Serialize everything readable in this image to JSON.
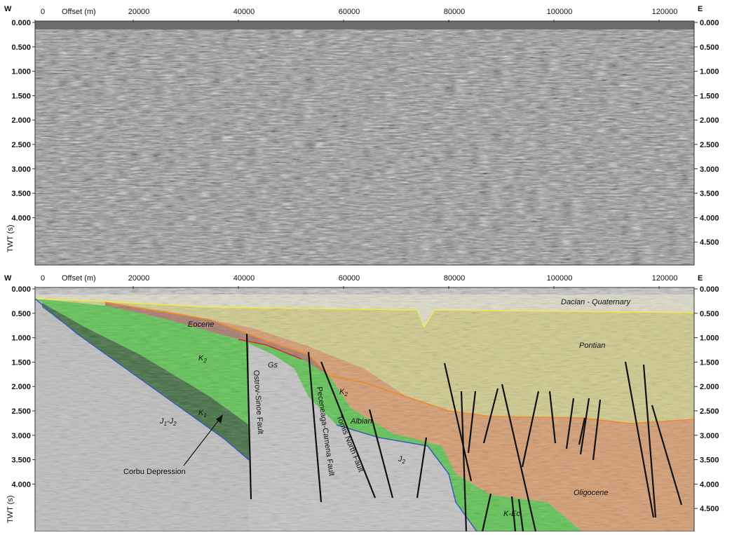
{
  "top_panel": {
    "west_label": "W",
    "east_label": "E",
    "offset_label": "Offset (m)",
    "y_axis_label": "TWT (s)",
    "x_ticks": [
      "0",
      "20000",
      "40000",
      "60000",
      "80000",
      "100000",
      "120000"
    ],
    "y_ticks_left": [
      "0.000",
      "0.500",
      "1.000",
      "1.500",
      "2.000",
      "2.500",
      "3.000",
      "3.500",
      "4.000"
    ],
    "y_ticks_right": [
      "0.000",
      "0.500",
      "1.000",
      "1.500",
      "2.000",
      "2.500",
      "3.000",
      "3.500",
      "4.000",
      "4.500"
    ]
  },
  "bottom_panel": {
    "west_label": "W",
    "east_label": "E",
    "offset_label": "Offset (m)",
    "y_axis_label": "TWT (s)",
    "x_ticks": [
      "0",
      "20000",
      "40000",
      "60000",
      "80000",
      "100000",
      "120000"
    ],
    "y_ticks_left": [
      "0.000",
      "0.500",
      "1.000",
      "1.500",
      "2.000",
      "2.500",
      "3.000",
      "3.500",
      "4.000"
    ],
    "y_ticks_right": [
      "0.000",
      "0.500",
      "1.000",
      "1.500",
      "2.000",
      "2.500",
      "3.000",
      "3.500",
      "4.000",
      "4.500"
    ],
    "units": {
      "dacian": "Dacian - Quaternary",
      "pontian": "Pontian",
      "eocene": "Eocene",
      "k2_main": "K",
      "k2_main_sub": "2",
      "k1": "K",
      "k1_sub": "1",
      "j1j2_a": "J",
      "j1j2_a_sub": "1",
      "j1j2_b": "-J",
      "j1j2_b_sub": "2",
      "gs": "Gs",
      "k2_b": "K",
      "k2_b_sub": "2",
      "albian": "Albian",
      "j2": "J",
      "j2_sub": "2",
      "oligocene": "Oligocene",
      "k_ec": "K-Ec"
    },
    "faults": {
      "ostrov": "Ostrov-Sinoe Fault",
      "peceneaga": "Peceneaga-Camena Fault",
      "tomis": "Tomis North Fault"
    },
    "corbu": "Corbu Depression"
  },
  "colors": {
    "pontian": "#cfc98a",
    "oligocene": "#d49a6e",
    "green": "#5cc24f",
    "dark_green": "#3d6b3d",
    "eocene": "#a6786a",
    "basement": "#bdbdbd",
    "seismic_bg": "#9a9a9a"
  }
}
